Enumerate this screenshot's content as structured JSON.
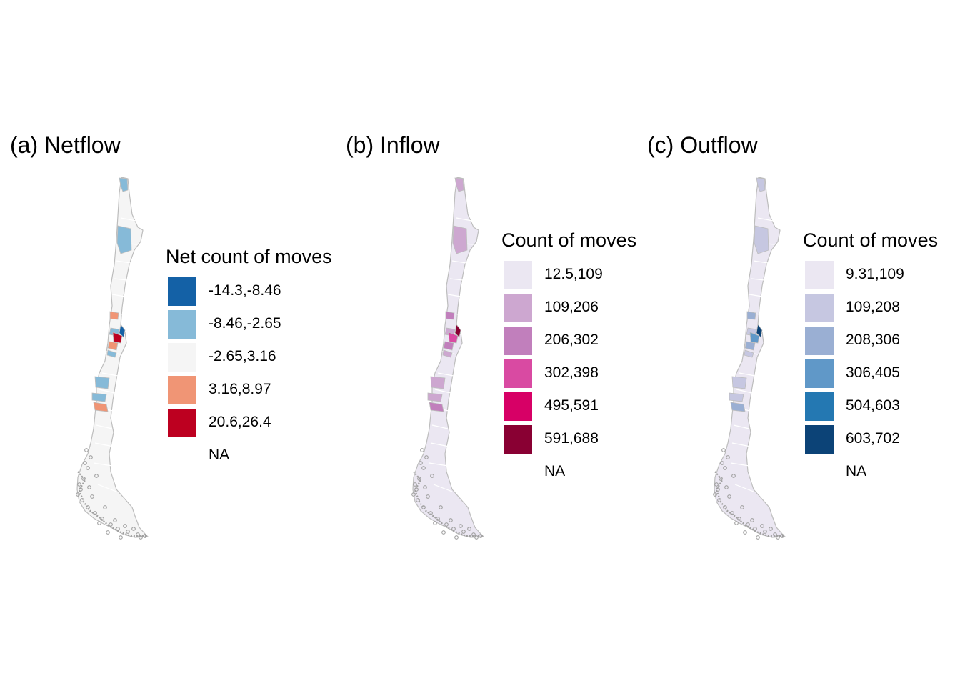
{
  "panels": [
    {
      "id": "netflow",
      "title": "(a) Netflow",
      "legend_title": "Net count of moves",
      "legend": [
        {
          "label": "-14.3,-8.46",
          "color": "#1461a6"
        },
        {
          "label": "-8.46,-2.65",
          "color": "#86bad8"
        },
        {
          "label": "-2.65,3.16",
          "color": "#f5f5f5"
        },
        {
          "label": "3.16,8.97",
          "color": "#f09575"
        },
        {
          "label": "20.6,26.4",
          "color": "#bd0020"
        },
        {
          "label": "NA",
          "color": "#ffffff"
        }
      ],
      "base_fill": "#f5f5f5",
      "highlight_colors": [
        "#86bad8",
        "#f09575",
        "#1461a6",
        "#bd0020"
      ]
    },
    {
      "id": "inflow",
      "title": "(b) Inflow",
      "legend_title": "Count of moves",
      "legend": [
        {
          "label": "12.5,109",
          "color": "#ebe7f2"
        },
        {
          "label": "109,206",
          "color": "#cda7d0"
        },
        {
          "label": "206,302",
          "color": "#c17fbc"
        },
        {
          "label": "302,398",
          "color": "#d94aa2"
        },
        {
          "label": "495,591",
          "color": "#d70066"
        },
        {
          "label": "591,688",
          "color": "#890033"
        },
        {
          "label": "NA",
          "color": "#ffffff"
        }
      ],
      "base_fill": "#ebe7f2",
      "highlight_colors": [
        "#cda7d0",
        "#c17fbc",
        "#890033",
        "#d94aa2"
      ]
    },
    {
      "id": "outflow",
      "title": "(c) Outflow",
      "legend_title": "Count of moves",
      "legend": [
        {
          "label": "9.31,109",
          "color": "#ebe7f2"
        },
        {
          "label": "109,208",
          "color": "#c6c7e1"
        },
        {
          "label": "208,306",
          "color": "#9aafd3"
        },
        {
          "label": "306,405",
          "color": "#6098c8"
        },
        {
          "label": "504,603",
          "color": "#2478b2"
        },
        {
          "label": "603,702",
          "color": "#0c4377"
        },
        {
          "label": "NA",
          "color": "#ffffff"
        }
      ],
      "base_fill": "#ebe7f2",
      "highlight_colors": [
        "#c6c7e1",
        "#9aafd3",
        "#0c4377",
        "#6098c8"
      ]
    }
  ],
  "colors": {
    "border": "#bdbdbd",
    "islands": "#a0a0a0"
  }
}
